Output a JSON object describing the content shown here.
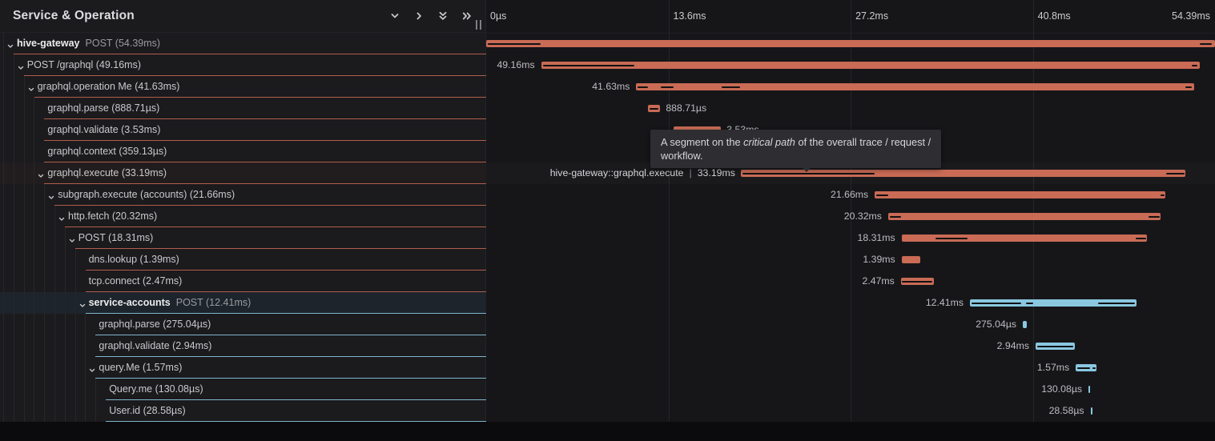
{
  "header": {
    "title": "Service & Operation",
    "icons": [
      "chevron-down-icon",
      "chevron-right-icon",
      "double-chevron-down-icon",
      "double-chevron-right-icon"
    ]
  },
  "axis": {
    "total_ms": 54.39,
    "ticks": [
      {
        "label": "0µs",
        "ms": 0
      },
      {
        "label": "13.6ms",
        "ms": 13.6
      },
      {
        "label": "27.2ms",
        "ms": 27.2
      },
      {
        "label": "40.8ms",
        "ms": 40.8
      },
      {
        "label": "54.39ms",
        "ms": 54.39
      }
    ]
  },
  "tooltip": {
    "line1_pre": "A segment on the ",
    "line1_em": "critical path",
    "line1_post": " of the overall trace / request /",
    "line2": "workflow."
  },
  "hover_label": {
    "span": "hive-gateway::graphql.execute",
    "separator": "|",
    "duration": "33.19ms"
  },
  "colors": {
    "salmon": "#c96b55",
    "blue": "#8ac8e0",
    "salmon_border": "rgba(201,107,85,0.85)",
    "blue_border": "rgba(138,200,224,0.9)",
    "critical_path": "#111113",
    "background": "#161619",
    "panel_background": "#1b1a1d",
    "tooltip_background": "#2d2d32",
    "footer": "#0b0b0d"
  },
  "spans": [
    {
      "level": 0,
      "expandable": true,
      "service": "hive-gateway",
      "label": "POST (54.39ms)",
      "color": "salmon",
      "start_ms": 0,
      "duration_ms": 54.39,
      "bar_label": null,
      "bar_label_side": null,
      "critical_path_ms": [
        [
          0.12,
          4.05
        ],
        [
          53.25,
          54.15
        ]
      ],
      "state": null
    },
    {
      "level": 1,
      "expandable": true,
      "service": null,
      "label": "POST /graphql (49.16ms)",
      "color": "salmon",
      "start_ms": 4.1,
      "duration_ms": 49.16,
      "bar_label": "49.16ms",
      "bar_label_side": "left",
      "critical_path_ms": [
        [
          4.22,
          11.05
        ],
        [
          52.65,
          53.1
        ]
      ],
      "state": null
    },
    {
      "level": 2,
      "expandable": true,
      "service": null,
      "label": "graphql.operation Me (41.63ms)",
      "color": "salmon",
      "start_ms": 11.2,
      "duration_ms": 41.63,
      "bar_label": "41.63ms",
      "bar_label_side": "left",
      "critical_path_ms": [
        [
          11.32,
          12.05
        ],
        [
          13.0,
          14.0
        ],
        [
          17.6,
          18.95
        ],
        [
          52.15,
          52.65
        ]
      ],
      "state": null
    },
    {
      "level": 3,
      "expandable": false,
      "service": null,
      "label": "graphql.parse (888.71µs)",
      "color": "salmon",
      "start_ms": 12.1,
      "duration_ms": 0.889,
      "bar_label": "888.71µs",
      "bar_label_side": "right",
      "critical_path_ms": [
        [
          12.18,
          12.85
        ]
      ],
      "state": null
    },
    {
      "level": 3,
      "expandable": false,
      "service": null,
      "label": "graphql.validate (3.53ms)",
      "color": "salmon",
      "start_ms": 14.0,
      "duration_ms": 3.53,
      "bar_label": "3.53ms",
      "bar_label_side": "right",
      "critical_path_ms": [
        [
          14.1,
          17.4
        ]
      ],
      "state": null
    },
    {
      "level": 3,
      "expandable": false,
      "service": null,
      "label": "graphql.context (359.13µs)",
      "color": "salmon",
      "start_ms": 17.6,
      "duration_ms": 0.359,
      "bar_label": "359.13µs",
      "bar_label_side": "right",
      "critical_path_ms": [],
      "state": null
    },
    {
      "level": 3,
      "expandable": true,
      "service": null,
      "label": "graphql.execute (33.19ms)",
      "color": "salmon",
      "start_ms": 19.0,
      "duration_ms": 33.19,
      "bar_label": null,
      "bar_label_side": null,
      "critical_path_ms": [
        [
          19.15,
          29.0
        ],
        [
          50.75,
          52.1
        ]
      ],
      "state": "hover"
    },
    {
      "level": 4,
      "expandable": true,
      "service": null,
      "label": "subgraph.execute (accounts) (21.66ms)",
      "color": "salmon",
      "start_ms": 29.0,
      "duration_ms": 21.66,
      "bar_label": "21.66ms",
      "bar_label_side": "left",
      "critical_path_ms": [
        [
          29.1,
          30.0
        ],
        [
          50.35,
          50.6
        ]
      ],
      "state": null
    },
    {
      "level": 5,
      "expandable": true,
      "service": null,
      "label": "http.fetch (20.32ms)",
      "color": "salmon",
      "start_ms": 30.0,
      "duration_ms": 20.32,
      "bar_label": "20.32ms",
      "bar_label_side": "left",
      "critical_path_ms": [
        [
          30.1,
          30.95
        ],
        [
          49.4,
          50.25
        ]
      ],
      "state": null
    },
    {
      "level": 6,
      "expandable": true,
      "service": null,
      "label": "POST (18.31ms)",
      "color": "salmon",
      "start_ms": 31.0,
      "duration_ms": 18.31,
      "bar_label": "18.31ms",
      "bar_label_side": "left",
      "critical_path_ms": [
        [
          33.55,
          35.95
        ],
        [
          48.45,
          49.25
        ]
      ],
      "state": null
    },
    {
      "level": 7,
      "expandable": false,
      "service": null,
      "label": "dns.lookup (1.39ms)",
      "color": "salmon",
      "start_ms": 31.0,
      "duration_ms": 1.39,
      "bar_label": "1.39ms",
      "bar_label_side": "left",
      "critical_path_ms": [],
      "state": null
    },
    {
      "level": 7,
      "expandable": false,
      "service": null,
      "label": "tcp.connect (2.47ms)",
      "color": "salmon",
      "start_ms": 30.95,
      "duration_ms": 2.47,
      "bar_label": "2.47ms",
      "bar_label_side": "left",
      "critical_path_ms": [
        [
          31.05,
          33.3
        ]
      ],
      "state": null
    },
    {
      "level": 7,
      "expandable": true,
      "service": "service-accounts",
      "label": "POST (12.41ms)",
      "color": "blue",
      "start_ms": 36.1,
      "duration_ms": 12.41,
      "bar_label": "12.41ms",
      "bar_label_side": "left",
      "critical_path_ms": [
        [
          36.2,
          39.9
        ],
        [
          40.3,
          40.85
        ],
        [
          45.65,
          48.4
        ]
      ],
      "state": "selected"
    },
    {
      "level": 8,
      "expandable": false,
      "service": null,
      "label": "graphql.parse (275.04µs)",
      "color": "blue",
      "start_ms": 40.05,
      "duration_ms": 0.275,
      "bar_label": "275.04µs",
      "bar_label_side": "left",
      "critical_path_ms": [],
      "state": null
    },
    {
      "level": 8,
      "expandable": false,
      "service": null,
      "label": "graphql.validate (2.94ms)",
      "color": "blue",
      "start_ms": 41.0,
      "duration_ms": 2.94,
      "bar_label": "2.94ms",
      "bar_label_side": "left",
      "critical_path_ms": [
        [
          41.1,
          43.8
        ]
      ],
      "state": null
    },
    {
      "level": 8,
      "expandable": true,
      "service": null,
      "label": "query.Me (1.57ms)",
      "color": "blue",
      "start_ms": 44.0,
      "duration_ms": 1.57,
      "bar_label": "1.57ms",
      "bar_label_side": "left",
      "critical_path_ms": [
        [
          44.1,
          45.05
        ],
        [
          45.25,
          45.5
        ]
      ],
      "state": null
    },
    {
      "level": 9,
      "expandable": false,
      "service": null,
      "label": "Query.me (130.08µs)",
      "color": "blue",
      "start_ms": 44.95,
      "duration_ms": 0.13,
      "bar_label": "130.08µs",
      "bar_label_side": "left",
      "critical_path_ms": [],
      "state": null
    },
    {
      "level": 9,
      "expandable": false,
      "service": null,
      "label": "User.id (28.58µs)",
      "color": "blue",
      "start_ms": 45.1,
      "duration_ms": 0.0286,
      "bar_label": "28.58µs",
      "bar_label_side": "left",
      "critical_path_ms": [],
      "state": null
    }
  ]
}
